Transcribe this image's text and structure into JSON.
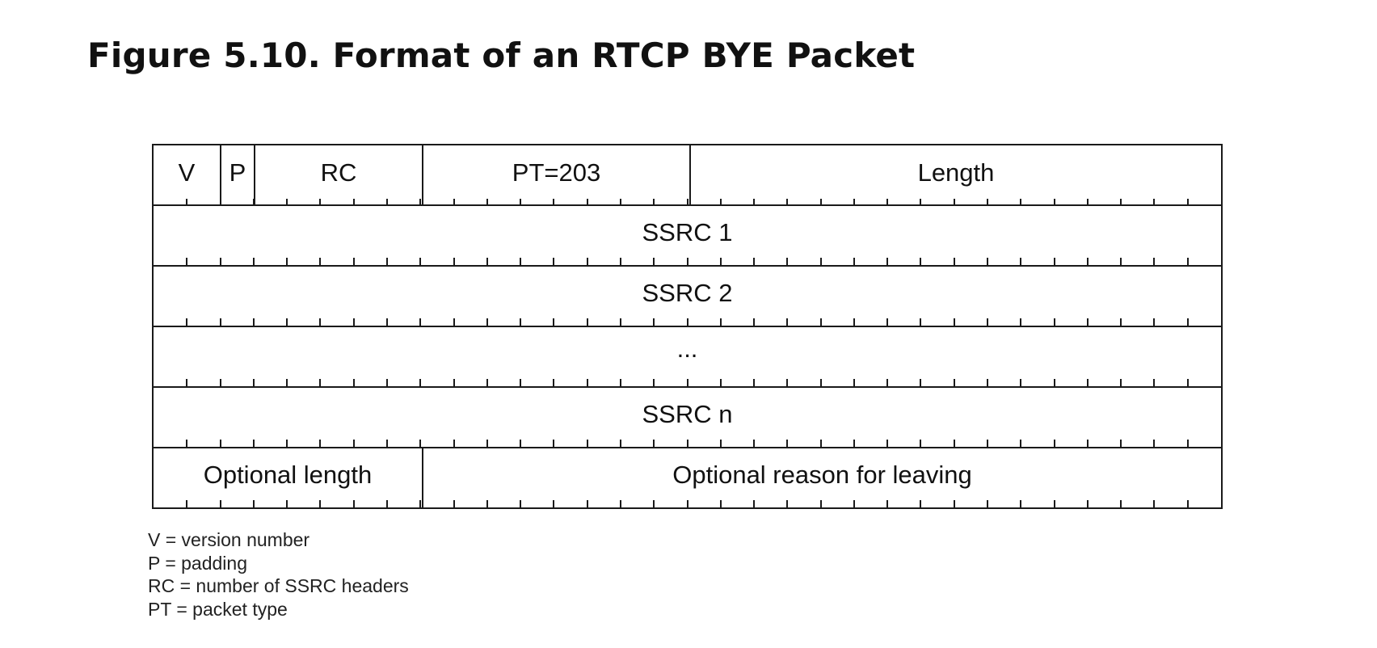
{
  "figure": {
    "title": "Figure 5.10. Format of an RTCP BYE Packet"
  },
  "packet": {
    "header": {
      "v": "V",
      "p": "P",
      "rc": "RC",
      "pt": "PT=203",
      "length": "Length"
    },
    "rows": [
      "SSRC 1",
      "SSRC 2",
      "...",
      "SSRC n"
    ],
    "optional": {
      "length": "Optional length",
      "reason": "Optional reason for leaving"
    },
    "bits_per_row": 32
  },
  "legend": [
    "V = version number",
    "P = padding",
    "RC = number of SSRC headers",
    "PT = packet type"
  ],
  "colors": {
    "line": "#1a1a1a",
    "text": "#111111",
    "background": "#ffffff"
  }
}
